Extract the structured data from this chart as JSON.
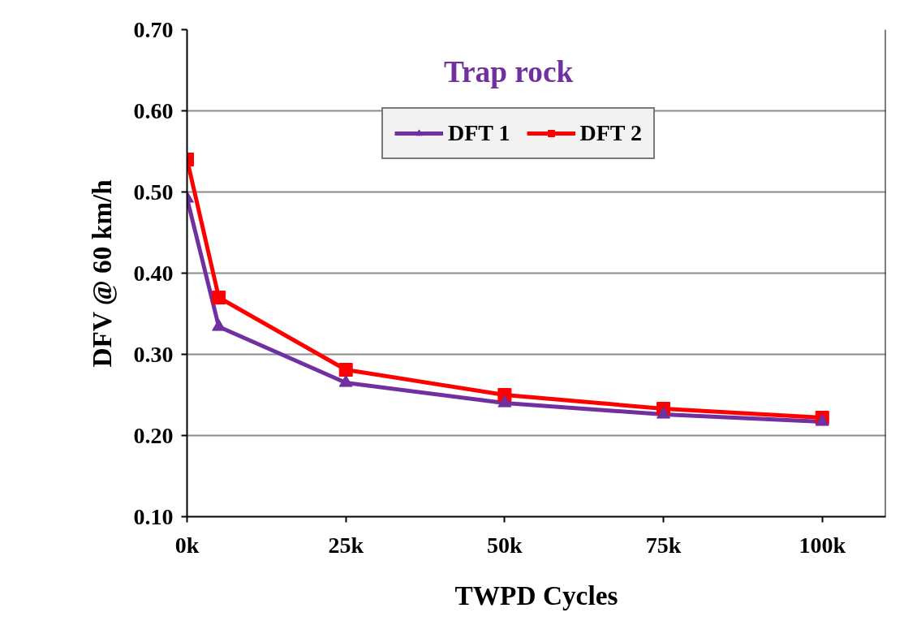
{
  "chart_data": {
    "type": "line",
    "title": "Trap rock",
    "xlabel": "TWPD Cycles",
    "ylabel": "DFV @ 60 km/h",
    "x": [
      0,
      5000,
      25000,
      50000,
      75000,
      100000
    ],
    "series": [
      {
        "name": "DFT 1",
        "color": "#7030a0",
        "marker": "triangle",
        "values": [
          0.492,
          0.334,
          0.265,
          0.24,
          0.226,
          0.217
        ]
      },
      {
        "name": "DFT 2",
        "color": "#ff0000",
        "marker": "square",
        "values": [
          0.54,
          0.37,
          0.281,
          0.25,
          0.233,
          0.222
        ]
      }
    ],
    "xlim": [
      0,
      110000
    ],
    "xticks": [
      {
        "value": 0,
        "label": "0k"
      },
      {
        "value": 25000,
        "label": "25k"
      },
      {
        "value": 50000,
        "label": "50k"
      },
      {
        "value": 75000,
        "label": "75k"
      },
      {
        "value": 100000,
        "label": "100k"
      }
    ],
    "ylim": [
      0.1,
      0.7
    ],
    "yticks": [
      {
        "value": 0.1,
        "label": "0.10"
      },
      {
        "value": 0.2,
        "label": "0.20"
      },
      {
        "value": 0.3,
        "label": "0.30"
      },
      {
        "value": 0.4,
        "label": "0.40"
      },
      {
        "value": 0.5,
        "label": "0.50"
      },
      {
        "value": 0.6,
        "label": "0.60"
      },
      {
        "value": 0.7,
        "label": "0.70"
      }
    ],
    "grid": "y",
    "legend": "top",
    "line_style": "solid"
  }
}
